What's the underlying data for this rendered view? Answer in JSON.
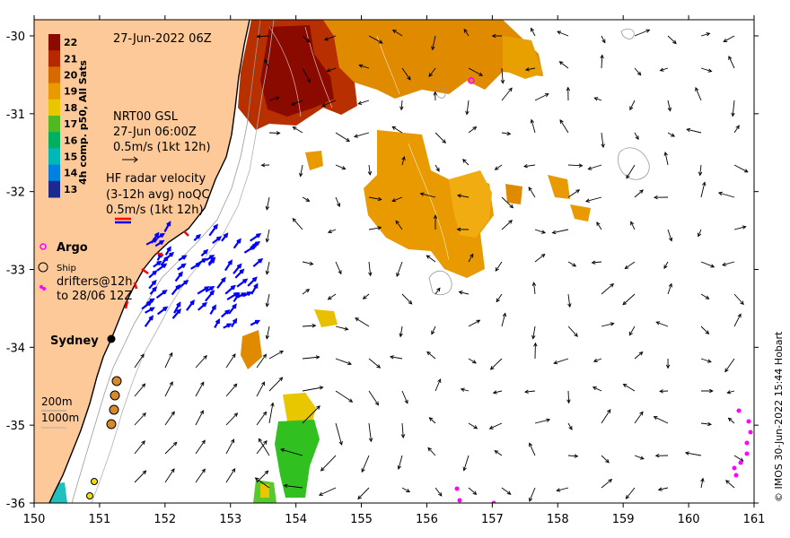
{
  "header": {
    "date_label": "27-Jun-2022 06Z"
  },
  "colorbar": {
    "label": "4h comp. p50, All Sats",
    "ticks": [
      "22",
      "21",
      "20",
      "19",
      "18",
      "17",
      "16",
      "15",
      "14",
      "13"
    ],
    "colors": [
      "#8b0a00",
      "#b52800",
      "#d66a00",
      "#e89a00",
      "#e8c600",
      "#50b820",
      "#00b060",
      "#00b8b8",
      "#0080e0",
      "#1a2a90"
    ]
  },
  "legend": {
    "gsl": {
      "line1": "NRT00 GSL",
      "line2": "27-Jun 06:00Z",
      "line3": "0.5m/s (1kt 12h)"
    },
    "hf_radar": {
      "line1": "HF radar velocity",
      "line2": "(3-12h avg) noQC",
      "line3": "0.5m/s (1kt 12h)"
    },
    "argo": "Argo",
    "ship": "Ship",
    "drifters": {
      "line1": "drifters@12h",
      "line2": "to 28/06 12Z"
    },
    "city": "Sydney",
    "depth_200": "200m",
    "depth_1000": "1000m"
  },
  "axes": {
    "x_ticks": [
      "150",
      "151",
      "152",
      "153",
      "154",
      "155",
      "156",
      "157",
      "158",
      "159",
      "160",
      "161"
    ],
    "y_ticks": [
      "-30",
      "-31",
      "-32",
      "-33",
      "-34",
      "-35",
      "-36"
    ]
  },
  "credit": "© IMOS 30-Jun-2022 15:44 Hobart",
  "colors": {
    "land": "#fdc999",
    "argo": "#ff00ff",
    "hf_red": "#ff0000",
    "hf_blue": "#0000ff",
    "drifter": "#ff00ff"
  }
}
